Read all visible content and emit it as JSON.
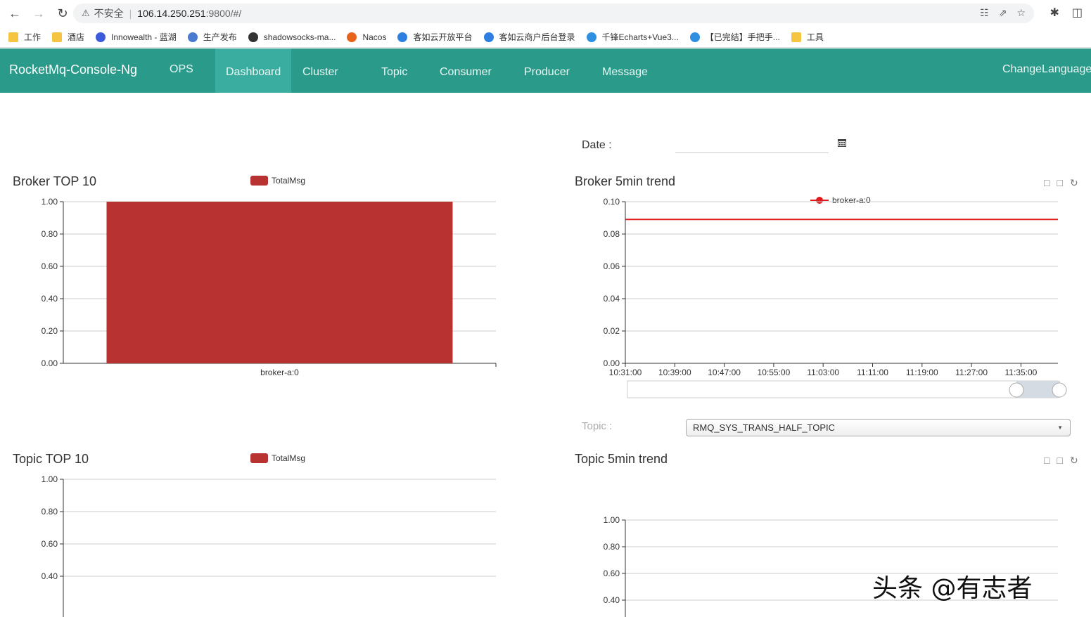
{
  "browser": {
    "insecure_label": "不安全",
    "url_host": "106.14.250.251",
    "url_rest": ":9800/#/",
    "bookmarks": [
      {
        "label": "工作",
        "icon": "folder-icon"
      },
      {
        "label": "酒店",
        "icon": "folder-icon"
      },
      {
        "label": "Innowealth - 蓝湖",
        "icon": "lanhu-icon"
      },
      {
        "label": "生产发布",
        "icon": "bird-icon"
      },
      {
        "label": "shadowsocks-ma...",
        "icon": "github-icon"
      },
      {
        "label": "Nacos",
        "icon": "nacos-icon"
      },
      {
        "label": "客如云开放平台",
        "icon": "keruyun-icon"
      },
      {
        "label": "客如云商户后台登录",
        "icon": "keruyun-icon"
      },
      {
        "label": "千锋Echarts+Vue3...",
        "icon": "bilibili-icon"
      },
      {
        "label": "【已完结】手把手...",
        "icon": "bilibili-icon"
      },
      {
        "label": "工具",
        "icon": "folder-icon"
      }
    ]
  },
  "nav": {
    "brand": "RocketMq-Console-Ng",
    "items": [
      {
        "label": "OPS"
      },
      {
        "label": "Dashboard",
        "active": true
      },
      {
        "label": "Cluster"
      },
      {
        "label": "Topic"
      },
      {
        "label": "Consumer"
      },
      {
        "label": "Producer"
      },
      {
        "label": "Message"
      }
    ],
    "change_language": "ChangeLanguage"
  },
  "date": {
    "label": "Date :",
    "value": ""
  },
  "topic_select": {
    "label": "Topic :",
    "selected": "RMQ_SYS_TRANS_HALF_TOPIC"
  },
  "watermark": "头条 @有志者",
  "colors": {
    "nav_bg": "#2a9a8a",
    "bar": "#b83232",
    "line": "#e01b1b"
  },
  "chart_data": [
    {
      "type": "bar",
      "title": "Broker TOP 10",
      "legend": [
        "TotalMsg"
      ],
      "categories": [
        "broker-a:0"
      ],
      "values": [
        1.0
      ],
      "yticks": [
        "0.00",
        "0.20",
        "0.40",
        "0.60",
        "0.80",
        "1.00"
      ],
      "ylim": [
        0,
        1
      ]
    },
    {
      "type": "line",
      "title": "Broker 5min trend",
      "legend": [
        "broker-a:0"
      ],
      "xticks": [
        "10:31:00",
        "10:39:00",
        "10:47:00",
        "10:55:00",
        "11:03:00",
        "11:11:00",
        "11:19:00",
        "11:27:00",
        "11:35:00"
      ],
      "yticks": [
        "0.00",
        "0.02",
        "0.04",
        "0.06",
        "0.08",
        "0.10"
      ],
      "ylim": [
        0,
        0.1
      ],
      "series": [
        {
          "name": "broker-a:0",
          "values": [
            0.089,
            0.089,
            0.089,
            0.089,
            0.089,
            0.089,
            0.089,
            0.089,
            0.089,
            0.089
          ]
        }
      ]
    },
    {
      "type": "bar",
      "title": "Topic TOP 10",
      "legend": [
        "TotalMsg"
      ],
      "categories": [],
      "values": [],
      "yticks": [
        "0.40",
        "0.60",
        "0.80",
        "1.00"
      ],
      "ylim": [
        0,
        1
      ]
    },
    {
      "type": "line",
      "title": "Topic 5min trend",
      "legend": [],
      "yticks": [
        "0.40",
        "0.60",
        "0.80",
        "1.00"
      ],
      "ylim": [
        0,
        1
      ],
      "series": []
    }
  ]
}
